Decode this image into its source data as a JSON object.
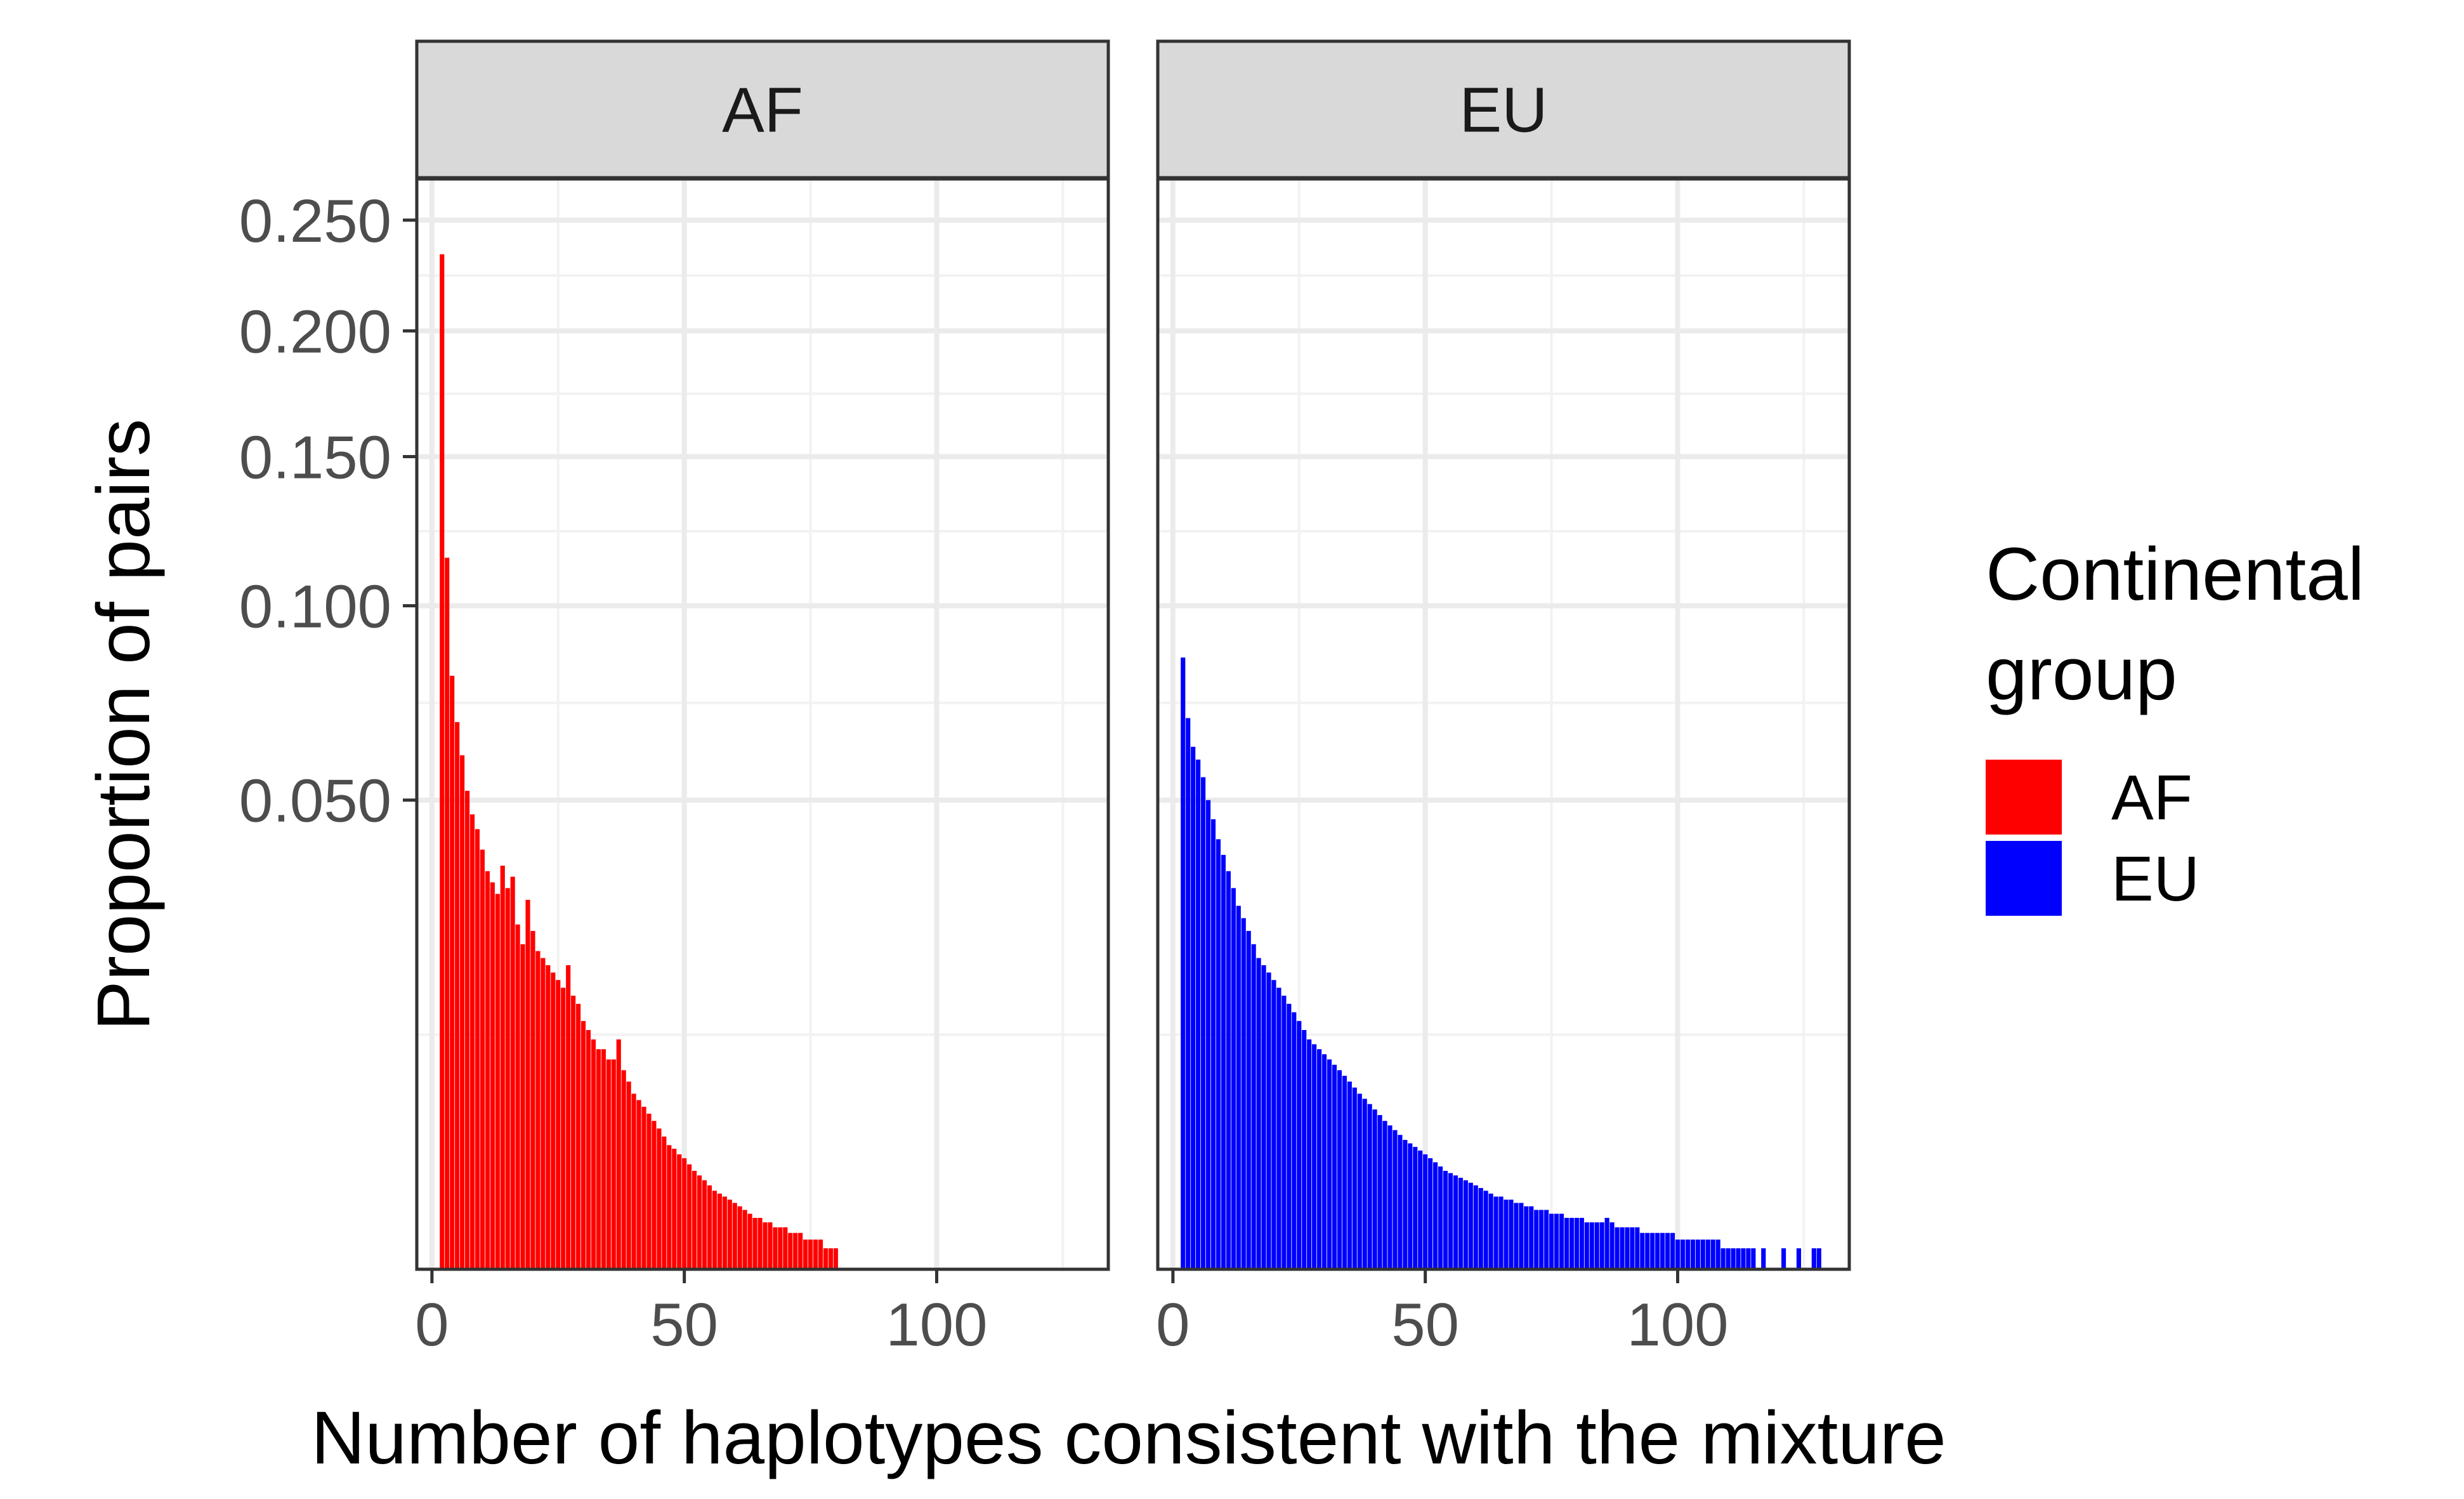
{
  "chart_data": {
    "type": "bar",
    "xlabel": "Number of haplotypes consistent with the mixture",
    "ylabel": "Proportion of pairs",
    "y_scale": "sqrt",
    "ylim": [
      0,
      0.27
    ],
    "xlim": [
      -3,
      134
    ],
    "x_ticks": [
      0,
      50,
      100
    ],
    "x_tick_labels": [
      "0",
      "50",
      "100"
    ],
    "y_ticks": [
      0.05,
      0.1,
      0.15,
      0.2,
      0.25
    ],
    "y_tick_labels": [
      "0.050",
      "0.100",
      "0.150",
      "0.200",
      "0.250"
    ],
    "grid": true,
    "legend": {
      "title_lines": [
        "Continental",
        "group"
      ],
      "position": "right",
      "entries": [
        {
          "label": "AF",
          "color": "#ff0000"
        },
        {
          "label": "EU",
          "color": "#0000ff"
        }
      ]
    },
    "panels": [
      {
        "strip_label": "AF",
        "series_name": "AF",
        "color": "#ff0000",
        "x_start": 2,
        "values": [
          0.234,
          0.115,
          0.08,
          0.068,
          0.06,
          0.052,
          0.047,
          0.044,
          0.04,
          0.036,
          0.034,
          0.032,
          0.037,
          0.033,
          0.035,
          0.027,
          0.024,
          0.031,
          0.026,
          0.023,
          0.022,
          0.021,
          0.02,
          0.019,
          0.018,
          0.021,
          0.017,
          0.016,
          0.014,
          0.013,
          0.012,
          0.011,
          0.011,
          0.01,
          0.01,
          0.012,
          0.009,
          0.008,
          0.007,
          0.0065,
          0.006,
          0.0055,
          0.005,
          0.0045,
          0.004,
          0.0035,
          0.0033,
          0.003,
          0.0028,
          0.0025,
          0.0022,
          0.002,
          0.0018,
          0.0016,
          0.0014,
          0.0013,
          0.0012,
          0.0011,
          0.001,
          0.0009,
          0.0008,
          0.0007,
          0.0006,
          0.0006,
          0.0005,
          0.0005,
          0.0004,
          0.0004,
          0.0004,
          0.0003,
          0.0003,
          0.0003,
          0.0002,
          0.0002,
          0.0002,
          0.0002,
          0.0001,
          0.0001,
          0.0001
        ]
      },
      {
        "strip_label": "EU",
        "series_name": "EU",
        "color": "#0000ff",
        "x_start": 2,
        "values": [
          0.085,
          0.069,
          0.062,
          0.059,
          0.055,
          0.05,
          0.046,
          0.042,
          0.039,
          0.036,
          0.033,
          0.03,
          0.028,
          0.026,
          0.024,
          0.022,
          0.021,
          0.02,
          0.019,
          0.018,
          0.017,
          0.016,
          0.015,
          0.014,
          0.013,
          0.012,
          0.0115,
          0.011,
          0.0105,
          0.01,
          0.0095,
          0.009,
          0.0085,
          0.008,
          0.0075,
          0.007,
          0.0066,
          0.0062,
          0.0058,
          0.0054,
          0.005,
          0.0047,
          0.0044,
          0.0041,
          0.0038,
          0.0036,
          0.0034,
          0.0032,
          0.003,
          0.0028,
          0.0026,
          0.0024,
          0.0022,
          0.0021,
          0.002,
          0.0019,
          0.0018,
          0.0017,
          0.0016,
          0.0015,
          0.0014,
          0.0013,
          0.0012,
          0.0012,
          0.0011,
          0.0011,
          0.001,
          0.001,
          0.0009,
          0.0009,
          0.0008,
          0.0008,
          0.0008,
          0.0007,
          0.0007,
          0.0007,
          0.0006,
          0.0006,
          0.0006,
          0.0006,
          0.0005,
          0.0005,
          0.0005,
          0.0005,
          0.0006,
          0.0005,
          0.0004,
          0.0004,
          0.0004,
          0.0004,
          0.0004,
          0.0003,
          0.0003,
          0.0003,
          0.0003,
          0.0003,
          0.0003,
          0.0003,
          0.0002,
          0.0002,
          0.0002,
          0.0002,
          0.0002,
          0.0002,
          0.0002,
          0.0002,
          0.0002,
          0.0001,
          0.0001,
          0.0001,
          0.0001,
          0.0001,
          0.0001,
          0.0001,
          0,
          0.0001,
          0,
          0,
          0,
          0.0001,
          0,
          0,
          0.0001,
          0,
          0,
          0.0001,
          0.0001
        ]
      }
    ]
  }
}
